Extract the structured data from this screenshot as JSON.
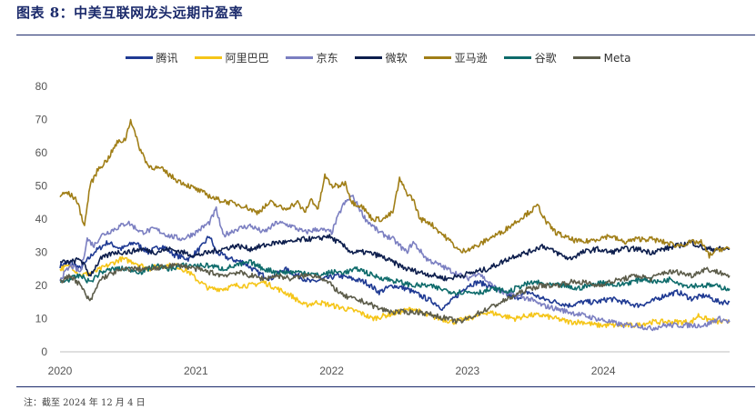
{
  "figure": {
    "title": "图表 8：中美互联网龙头远期市盈率",
    "source": "注：截至 2024 年 12 月 4 日"
  },
  "chart_data": {
    "type": "line",
    "xlabel": "",
    "ylabel": "",
    "xlim": [
      2020.0,
      2024.93
    ],
    "ylim": [
      0,
      80
    ],
    "yticks": [
      0,
      10,
      20,
      30,
      40,
      50,
      60,
      70,
      80
    ],
    "xticks": [
      {
        "value": 2020,
        "label": "2020"
      },
      {
        "value": 2021,
        "label": "2021"
      },
      {
        "value": 2022,
        "label": "2022"
      },
      {
        "value": 2023,
        "label": "2023"
      },
      {
        "value": 2024,
        "label": "2024"
      }
    ],
    "legend_position": "top",
    "series": [
      {
        "name": "腾讯",
        "color": "#1f3a93",
        "x": [
          2020.0,
          2020.08,
          2020.15,
          2020.25,
          2020.35,
          2020.45,
          2020.55,
          2020.65,
          2020.75,
          2020.85,
          2020.95,
          2021.05,
          2021.1,
          2021.15,
          2021.25,
          2021.35,
          2021.45,
          2021.55,
          2021.65,
          2021.75,
          2021.85,
          2021.95,
          2022.05,
          2022.15,
          2022.25,
          2022.35,
          2022.45,
          2022.55,
          2022.65,
          2022.75,
          2022.82,
          2022.9,
          2023.0,
          2023.08,
          2023.15,
          2023.25,
          2023.35,
          2023.45,
          2023.55,
          2023.65,
          2023.75,
          2023.85,
          2023.95,
          2024.05,
          2024.15,
          2024.25,
          2024.35,
          2024.45,
          2024.55,
          2024.65,
          2024.75,
          2024.85,
          2024.93
        ],
        "y": [
          26,
          27,
          25,
          30,
          33,
          31,
          33,
          30,
          32,
          29,
          28,
          32,
          35,
          30,
          28,
          27,
          24,
          22,
          25,
          23,
          21,
          22,
          23,
          22,
          21,
          18,
          20,
          19,
          17,
          15,
          13,
          16,
          20,
          21,
          20,
          18,
          16,
          18,
          16,
          15,
          14,
          15,
          15,
          16,
          15,
          14,
          15,
          17,
          18,
          16,
          17,
          15,
          15
        ]
      },
      {
        "name": "阿里巴巴",
        "color": "#f5c518",
        "x": [
          2020.0,
          2020.08,
          2020.15,
          2020.25,
          2020.35,
          2020.45,
          2020.55,
          2020.65,
          2020.75,
          2020.85,
          2020.95,
          2021.0,
          2021.1,
          2021.2,
          2021.3,
          2021.4,
          2021.5,
          2021.6,
          2021.7,
          2021.8,
          2021.9,
          2022.0,
          2022.1,
          2022.2,
          2022.3,
          2022.4,
          2022.5,
          2022.6,
          2022.7,
          2022.8,
          2022.9,
          2023.0,
          2023.08,
          2023.15,
          2023.25,
          2023.35,
          2023.45,
          2023.55,
          2023.65,
          2023.75,
          2023.85,
          2023.95,
          2024.05,
          2024.15,
          2024.25,
          2024.35,
          2024.45,
          2024.55,
          2024.65,
          2024.7,
          2024.75,
          2024.85,
          2024.93
        ],
        "y": [
          25,
          26,
          23,
          24,
          26,
          28,
          27,
          25,
          26,
          26,
          24,
          22,
          19,
          19,
          20,
          20,
          21,
          19,
          17,
          14,
          15,
          14,
          13,
          12,
          10,
          11,
          12,
          13,
          11,
          10,
          9,
          10,
          11,
          12,
          11,
          10,
          11,
          11,
          10,
          9,
          9,
          8,
          8,
          8,
          8,
          9,
          9,
          9,
          9,
          11,
          10,
          9,
          9
        ]
      },
      {
        "name": "京东",
        "color": "#7b7fc1",
        "x": [
          2020.0,
          2020.08,
          2020.15,
          2020.2,
          2020.25,
          2020.3,
          2020.4,
          2020.5,
          2020.6,
          2020.7,
          2020.8,
          2020.9,
          2021.0,
          2021.1,
          2021.15,
          2021.2,
          2021.3,
          2021.4,
          2021.5,
          2021.6,
          2021.7,
          2021.8,
          2021.9,
          2022.0,
          2022.08,
          2022.15,
          2022.25,
          2022.35,
          2022.45,
          2022.55,
          2022.6,
          2022.7,
          2022.8,
          2022.9,
          2023.0,
          2023.08,
          2023.15,
          2023.25,
          2023.35,
          2023.45,
          2023.55,
          2023.65,
          2023.75,
          2023.85,
          2023.95,
          2024.05,
          2024.15,
          2024.25,
          2024.35,
          2024.45,
          2024.55,
          2024.65,
          2024.75,
          2024.85,
          2024.93
        ],
        "y": [
          22,
          26,
          24,
          34,
          32,
          35,
          37,
          39,
          36,
          37,
          35,
          34,
          36,
          39,
          43,
          35,
          37,
          38,
          36,
          39,
          38,
          36,
          37,
          36,
          44,
          47,
          40,
          36,
          34,
          30,
          33,
          28,
          26,
          24,
          22,
          24,
          21,
          18,
          17,
          16,
          14,
          13,
          12,
          11,
          10,
          9,
          8,
          8,
          7,
          8,
          8,
          8,
          8,
          10,
          9
        ]
      },
      {
        "name": "微软",
        "color": "#0d1e4d",
        "x": [
          2020.0,
          2020.08,
          2020.15,
          2020.22,
          2020.3,
          2020.4,
          2020.5,
          2020.6,
          2020.7,
          2020.8,
          2020.9,
          2021.0,
          2021.1,
          2021.2,
          2021.3,
          2021.4,
          2021.5,
          2021.6,
          2021.7,
          2021.8,
          2021.9,
          2021.97,
          2022.05,
          2022.15,
          2022.25,
          2022.35,
          2022.45,
          2022.55,
          2022.65,
          2022.75,
          2022.85,
          2022.95,
          2023.05,
          2023.15,
          2023.25,
          2023.35,
          2023.45,
          2023.55,
          2023.65,
          2023.75,
          2023.85,
          2023.95,
          2024.05,
          2024.15,
          2024.25,
          2024.35,
          2024.45,
          2024.55,
          2024.65,
          2024.75,
          2024.85,
          2024.93
        ],
        "y": [
          27,
          27,
          28,
          23,
          28,
          30,
          30,
          31,
          30,
          31,
          30,
          29,
          30,
          31,
          32,
          31,
          32,
          33,
          33,
          34,
          34,
          35,
          33,
          30,
          30,
          29,
          27,
          25,
          24,
          23,
          22,
          23,
          24,
          25,
          27,
          29,
          30,
          32,
          30,
          28,
          30,
          31,
          30,
          31,
          31,
          30,
          31,
          32,
          33,
          31,
          31,
          31
        ]
      },
      {
        "name": "亚马逊",
        "color": "#a07e16",
        "x": [
          2020.0,
          2020.05,
          2020.12,
          2020.18,
          2020.22,
          2020.28,
          2020.35,
          2020.42,
          2020.48,
          2020.52,
          2020.58,
          2020.65,
          2020.75,
          2020.85,
          2020.95,
          2021.05,
          2021.15,
          2021.25,
          2021.35,
          2021.45,
          2021.55,
          2021.65,
          2021.75,
          2021.8,
          2021.85,
          2021.9,
          2021.95,
          2022.0,
          2022.05,
          2022.1,
          2022.15,
          2022.22,
          2022.3,
          2022.38,
          2022.45,
          2022.5,
          2022.55,
          2022.6,
          2022.65,
          2022.72,
          2022.8,
          2022.88,
          2022.95,
          2023.0,
          2023.08,
          2023.15,
          2023.25,
          2023.35,
          2023.45,
          2023.52,
          2023.58,
          2023.65,
          2023.75,
          2023.85,
          2023.95,
          2024.05,
          2024.15,
          2024.25,
          2024.35,
          2024.45,
          2024.55,
          2024.65,
          2024.72,
          2024.78,
          2024.85,
          2024.93
        ],
        "y": [
          47,
          48,
          46,
          38,
          50,
          55,
          58,
          63,
          64,
          70,
          62,
          56,
          55,
          52,
          50,
          48,
          46,
          45,
          44,
          42,
          45,
          43,
          45,
          42,
          46,
          43,
          53,
          50,
          50,
          51,
          45,
          44,
          40,
          40,
          42,
          52,
          48,
          46,
          40,
          39,
          36,
          33,
          30,
          31,
          32,
          34,
          36,
          39,
          42,
          44,
          39,
          36,
          34,
          33,
          34,
          35,
          33,
          34,
          34,
          33,
          32,
          33,
          33,
          29,
          31,
          31
        ]
      },
      {
        "name": "谷歌",
        "color": "#0e6b6b",
        "x": [
          2020.0,
          2020.08,
          2020.15,
          2020.22,
          2020.3,
          2020.4,
          2020.5,
          2020.6,
          2020.7,
          2020.8,
          2020.9,
          2021.0,
          2021.1,
          2021.2,
          2021.3,
          2021.4,
          2021.5,
          2021.6,
          2021.7,
          2021.8,
          2021.9,
          2022.0,
          2022.1,
          2022.2,
          2022.3,
          2022.4,
          2022.5,
          2022.6,
          2022.7,
          2022.8,
          2022.9,
          2023.0,
          2023.1,
          2023.2,
          2023.3,
          2023.4,
          2023.5,
          2023.6,
          2023.7,
          2023.8,
          2023.9,
          2024.0,
          2024.1,
          2024.2,
          2024.3,
          2024.4,
          2024.5,
          2024.6,
          2024.7,
          2024.8,
          2024.93
        ],
        "y": [
          21,
          22,
          23,
          21,
          24,
          25,
          25,
          24,
          26,
          25,
          26,
          26,
          26,
          25,
          26,
          27,
          25,
          24,
          24,
          24,
          23,
          24,
          24,
          25,
          23,
          22,
          21,
          20,
          20,
          19,
          18,
          18,
          18,
          19,
          18,
          20,
          21,
          20,
          20,
          19,
          20,
          21,
          20,
          21,
          22,
          21,
          22,
          20,
          20,
          20,
          19
        ]
      },
      {
        "name": "Meta",
        "color": "#5c5c4a",
        "x": [
          2020.0,
          2020.08,
          2020.15,
          2020.22,
          2020.3,
          2020.4,
          2020.5,
          2020.6,
          2020.7,
          2020.8,
          2020.9,
          2021.0,
          2021.1,
          2021.2,
          2021.3,
          2021.4,
          2021.5,
          2021.6,
          2021.7,
          2021.8,
          2021.9,
          2022.0,
          2022.08,
          2022.15,
          2022.25,
          2022.35,
          2022.45,
          2022.55,
          2022.65,
          2022.75,
          2022.85,
          2022.95,
          2023.05,
          2023.15,
          2023.25,
          2023.35,
          2023.45,
          2023.55,
          2023.65,
          2023.75,
          2023.85,
          2023.95,
          2024.05,
          2024.15,
          2024.25,
          2024.35,
          2024.45,
          2024.55,
          2024.65,
          2024.75,
          2024.85,
          2024.93
        ],
        "y": [
          21,
          23,
          20,
          15,
          22,
          24,
          25,
          25,
          25,
          26,
          26,
          25,
          24,
          23,
          24,
          23,
          22,
          23,
          22,
          23,
          23,
          20,
          17,
          16,
          15,
          13,
          12,
          12,
          12,
          11,
          10,
          9,
          11,
          13,
          15,
          17,
          19,
          20,
          20,
          21,
          21,
          20,
          21,
          22,
          23,
          22,
          24,
          24,
          23,
          25,
          24,
          23
        ]
      }
    ]
  }
}
